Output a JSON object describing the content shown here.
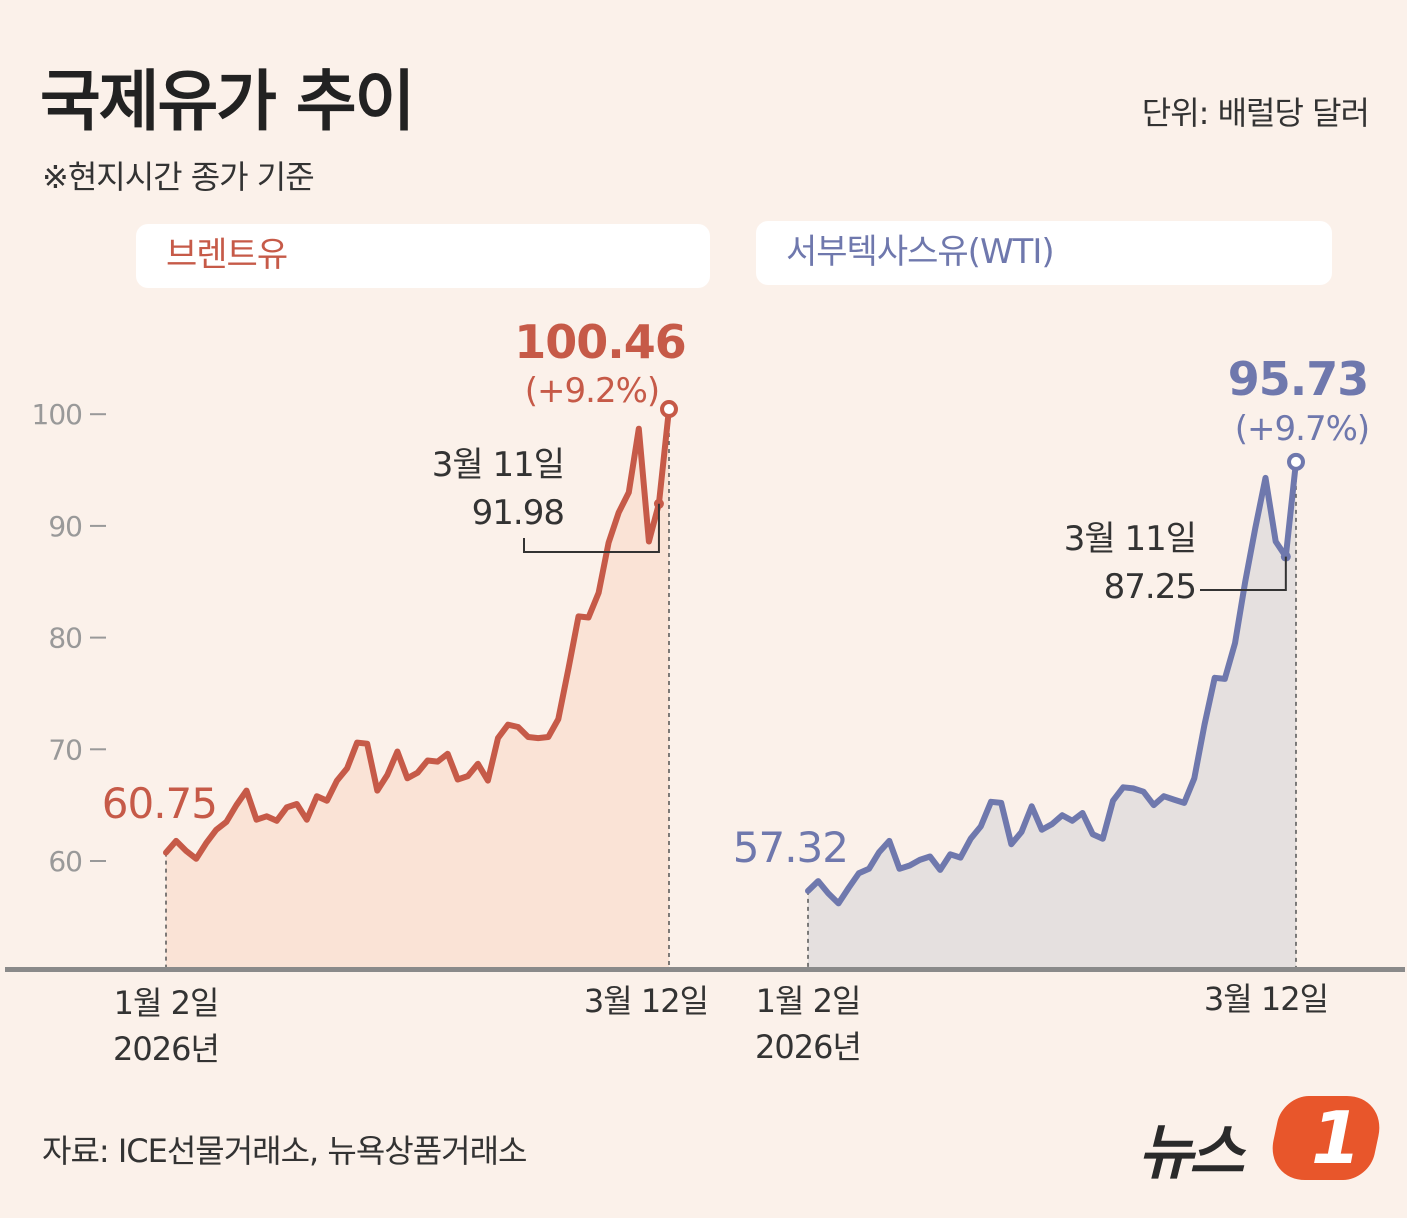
{
  "header": {
    "title": "국제유가 추이",
    "subtitle": "※현지시간 종가 기준",
    "unit": "단위: 배럴당 달러"
  },
  "colors": {
    "brent": "#c65a48",
    "brent_fill": "#fae3d6",
    "brent_drop": "#e9b7a5",
    "wti": "#6f78ad",
    "wti_fill": "#e5e0df",
    "wti_drop": "#c1c3d2",
    "axis": "#999999",
    "baseline": "#8a8a8a",
    "text": "#333333"
  },
  "chart_data": [
    {
      "type": "area",
      "name": "브렌트유",
      "yticks": [
        60,
        70,
        80,
        90,
        100
      ],
      "ylim": [
        52,
        102
      ],
      "x_label_start": "1월 2일",
      "x_label_start_year": "2026년",
      "x_label_end": "3월 12일",
      "start": {
        "label": "60.75",
        "value": 60.75
      },
      "end": {
        "label": "100.46",
        "change": "(+9.2%)",
        "value": 100.46
      },
      "annotation": {
        "date": "3월 11일",
        "label": "91.98",
        "value": 91.98
      },
      "values": [
        60.75,
        61.8,
        60.9,
        60.2,
        61.6,
        62.8,
        63.5,
        65.0,
        66.3,
        63.7,
        64.0,
        63.6,
        64.8,
        65.1,
        63.7,
        65.8,
        65.4,
        67.2,
        68.3,
        70.6,
        70.5,
        66.3,
        67.7,
        69.8,
        67.4,
        67.9,
        69.0,
        68.9,
        69.6,
        67.3,
        67.6,
        68.7,
        67.2,
        71.0,
        72.2,
        72.0,
        71.1,
        71.0,
        71.1,
        72.7,
        77.2,
        81.9,
        81.8,
        84.0,
        88.5,
        91.2,
        93.0,
        98.7,
        88.6,
        91.98,
        100.46
      ]
    },
    {
      "type": "area",
      "name": "서부텍사스유(WTI)",
      "x_label_start": "1월 2일",
      "x_label_start_year": "2026년",
      "x_label_end": "3월 12일",
      "ylim": [
        52,
        102
      ],
      "start": {
        "label": "57.32",
        "value": 57.32
      },
      "end": {
        "label": "95.73",
        "change": "(+9.7%)",
        "value": 95.73
      },
      "annotation": {
        "date": "3월 11일",
        "label": "87.25",
        "value": 87.25
      },
      "values": [
        57.32,
        58.2,
        57.1,
        56.2,
        57.6,
        58.9,
        59.3,
        60.8,
        61.8,
        59.3,
        59.6,
        60.1,
        60.4,
        59.2,
        60.6,
        60.3,
        62.0,
        63.1,
        65.3,
        65.2,
        61.5,
        62.6,
        64.9,
        62.8,
        63.3,
        64.1,
        63.6,
        64.3,
        62.4,
        62.0,
        65.4,
        66.6,
        66.5,
        66.2,
        65.0,
        65.8,
        65.5,
        65.2,
        67.4,
        72.2,
        76.4,
        76.3,
        79.5,
        85.0,
        89.8,
        94.3,
        88.6,
        87.25,
        95.73
      ]
    }
  ],
  "source": "자료: ICE선물거래소, 뉴욕상품거래소",
  "logo": {
    "text": "뉴스",
    "num": "1"
  }
}
